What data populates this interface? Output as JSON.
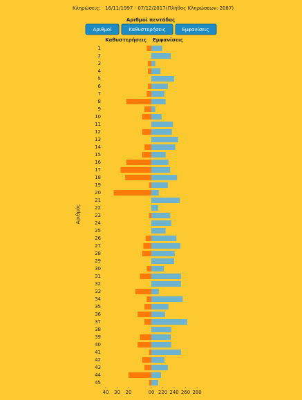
{
  "header": {
    "label": "Κληρώσεις:",
    "period": "16/11/1997 - 07/12/2017",
    "count": "(Πλήθος Κληρώσεων: 2087)"
  },
  "buttons": [
    "Αριθμοί",
    "Καθυστερήσεις",
    "Εμφανίσεις"
  ],
  "chart_data": {
    "type": "bar",
    "orientation": "horizontal",
    "title": "Αριθμοί πεντάδας",
    "y_label": "Αριθμός",
    "categories": [
      "1",
      "2",
      "3",
      "4",
      "5",
      "6",
      "7",
      "8",
      "9",
      "10",
      "11",
      "12",
      "13",
      "14",
      "15",
      "16",
      "17",
      "18",
      "19",
      "20",
      "21",
      "22",
      "23",
      "24",
      "25",
      "26",
      "27",
      "28",
      "29",
      "30",
      "31",
      "32",
      "33",
      "34",
      "35",
      "36",
      "37",
      "38",
      "39",
      "40",
      "41",
      "42",
      "43",
      "44",
      "45"
    ],
    "series": [
      {
        "name": "Καθυστερήσεις",
        "color": "#fb7a0a",
        "values": [
          4,
          0,
          3,
          3,
          0,
          3,
          4,
          22,
          6,
          8,
          0,
          8,
          0,
          6,
          8,
          22,
          27,
          23,
          2,
          33,
          0,
          0,
          2,
          0,
          0,
          5,
          7,
          8,
          0,
          4,
          10,
          0,
          14,
          4,
          6,
          12,
          6,
          0,
          10,
          12,
          2,
          8,
          6,
          20,
          2
        ]
      },
      {
        "name": "Εμφανίσεις",
        "color": "#6db3cf",
        "axis": "x2",
        "values": [
          219,
          234,
          207,
          216,
          240,
          229,
          223,
          225,
          207,
          218,
          238,
          236,
          247,
          242,
          225,
          230,
          233,
          245,
          229,
          213,
          250,
          212,
          233,
          235,
          225,
          244,
          251,
          241,
          240,
          222,
          252,
          252,
          213,
          255,
          230,
          224,
          263,
          235,
          234,
          235,
          252,
          223,
          229,
          217,
          212
        ]
      }
    ],
    "xlim": [
      40,
      0
    ],
    "xticks": [
      40,
      30,
      20,
      {
        "value": 0,
        "label": "00"
      }
    ],
    "x2lim": [
      200,
      280
    ],
    "x2ticks": [
      220,
      240,
      260,
      280
    ]
  }
}
